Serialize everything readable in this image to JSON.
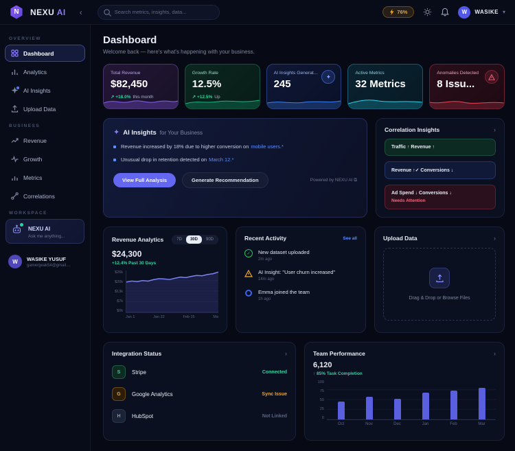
{
  "icons": {
    "collapse": "‹",
    "chevron_down": "▾",
    "chevron_right": "›",
    "sparkle": "✦",
    "check": "✓"
  },
  "topbar": {
    "logo_letter": "N",
    "brand": "NEXU",
    "brand_accent": "AI",
    "search_placeholder": "Search metrics, insights, data...",
    "ai_usage": "76%",
    "user_initial": "W",
    "user_name": "WASIKE"
  },
  "sidebar": {
    "sections": [
      {
        "label": "OVERVIEW",
        "items": [
          {
            "label": "Dashboard"
          },
          {
            "label": "Analytics"
          },
          {
            "label": "AI Insights"
          },
          {
            "label": "Upload Data"
          }
        ]
      },
      {
        "label": "BUSINESS",
        "items": [
          {
            "label": "Revenue"
          },
          {
            "label": "Growth"
          },
          {
            "label": "Metrics"
          },
          {
            "label": "Correlations"
          }
        ]
      },
      {
        "label": "WORKSPACE"
      }
    ],
    "workspace_card": {
      "title": "NEXU AI",
      "subtitle": "Ask me anything..."
    },
    "profile": {
      "initial": "W",
      "name": "WASIKE YUSUF",
      "email": "gamergeak54@gmail...."
    }
  },
  "header": {
    "title": "Dashboard",
    "subtitle": "Welcome back — here's what's happening with your business."
  },
  "stat_cards": [
    {
      "label": "Total Revenue",
      "value": "$82,450",
      "delta": "↗ +18.0%",
      "note": "this month"
    },
    {
      "label": "Growth Rate",
      "value": "12.5%",
      "delta": "↗ +12.5%",
      "note": "Up"
    },
    {
      "label": "AI Insights Generat...",
      "value": "245"
    },
    {
      "label": "Active Metrics",
      "value": "32 Metrics"
    },
    {
      "label": "Anomalies Detected",
      "value": "8 Issu..."
    }
  ],
  "ai_insights": {
    "title": "AI Insights",
    "title_suffix": "for Your Business",
    "bullets": [
      {
        "text": "Revenue increased by 18% due to higher conversion on",
        "link": "mobile users.*"
      },
      {
        "text": "Unusual drop in retention detected on",
        "link": "March 12.*"
      }
    ],
    "primary_button": "View Full Analysis",
    "secondary_button": "Generate Recommendation",
    "powered_by": "Powered by NEXU AI ⧉"
  },
  "correlation": {
    "title": "Correlation Insights",
    "items": [
      {
        "text": "Traffic ↑   Revenue ↑"
      },
      {
        "text": "Revenue ↑✓   Conversions ↓"
      },
      {
        "text": "Ad Spend ↓   Conversions ↓",
        "note": "Needs Attention"
      }
    ]
  },
  "revenue_analytics": {
    "title": "Revenue Analytics",
    "ranges": [
      "7D",
      "30D",
      "90D"
    ],
    "active_range": "30D",
    "value": "$24,300",
    "delta": "+12.4% Past 30 Days"
  },
  "recent_activity": {
    "title": "Recent Activity",
    "see_all": "See all",
    "items": [
      {
        "text": "New dataset uploaded",
        "time": "2m ago"
      },
      {
        "text": "AI Insight: \"User churn increased\"",
        "time": "14m ago"
      },
      {
        "text": "Emma joined the team",
        "time": "1h ago"
      }
    ]
  },
  "upload": {
    "title": "Upload Data",
    "dropzone_text": "Drag & Drop or Browse Files"
  },
  "integrations": {
    "title": "Integration Status",
    "items": [
      {
        "initial": "S",
        "name": "Stripe",
        "status": "Connected",
        "status_color": "#2dd4a0"
      },
      {
        "initial": "G",
        "name": "Google Analytics",
        "status": "Sync Issue",
        "status_color": "#f5a623"
      },
      {
        "initial": "H",
        "name": "HubSpot",
        "status": "Not Linked",
        "status_color": "#5a6580"
      }
    ]
  },
  "team_performance": {
    "title": "Team Performance",
    "value": "6,120",
    "delta": "↑ 85% Task Completion"
  },
  "chart_data": [
    {
      "type": "line",
      "name": "revenue-analytics",
      "title": "Revenue Analytics",
      "x_ticks": [
        "Jan 1",
        "Jan 22",
        "Feb 15",
        "Ma"
      ],
      "y_ticks": [
        "$26k",
        "$20k",
        "$13k",
        "$7k",
        "$0k"
      ],
      "values": [
        18.8,
        19.4,
        19.1,
        19.7,
        19.4,
        20.3,
        20.9,
        20.7,
        20.4,
        21.2,
        21.9,
        21.6,
        22.3,
        22.9,
        22.7,
        23.5,
        24.0,
        25.0
      ],
      "ylim": [
        0,
        26
      ],
      "line_color": "#7c83f7"
    },
    {
      "type": "bar",
      "name": "team-performance",
      "title": "Team Performance",
      "categories": [
        "Oct",
        "Nov",
        "Dec",
        "Jan",
        "Feb",
        "Mar"
      ],
      "values": [
        45,
        58,
        52,
        68,
        73,
        80
      ],
      "y_ticks": [
        100,
        75,
        50,
        25,
        0
      ],
      "ylim": [
        0,
        100
      ],
      "bar_color": "#5a5fe0"
    }
  ]
}
